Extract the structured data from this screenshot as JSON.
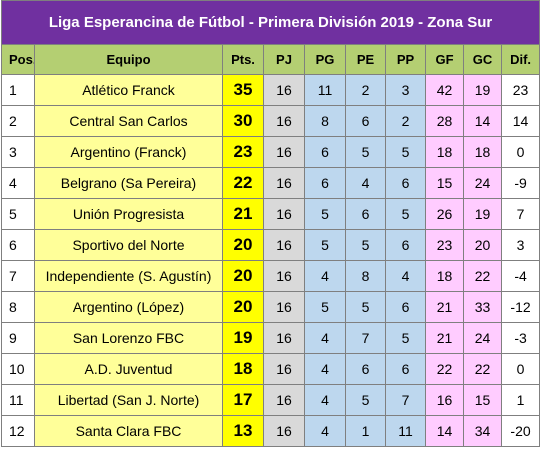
{
  "title": "Liga Esperancina de Fútbol - Primera División 2019 - Zona Sur",
  "headers": {
    "pos": "Pos.",
    "team": "Equipo",
    "pts": "Pts.",
    "pj": "PJ",
    "pg": "PG",
    "pe": "PE",
    "pp": "PP",
    "gf": "GF",
    "gc": "GC",
    "dif": "Dif."
  },
  "rows": [
    {
      "pos": "1",
      "team": "Atlético Franck",
      "pts": "35",
      "pj": "16",
      "pg": "11",
      "pe": "2",
      "pp": "3",
      "gf": "42",
      "gc": "19",
      "dif": "23"
    },
    {
      "pos": "2",
      "team": "Central San Carlos",
      "pts": "30",
      "pj": "16",
      "pg": "8",
      "pe": "6",
      "pp": "2",
      "gf": "28",
      "gc": "14",
      "dif": "14"
    },
    {
      "pos": "3",
      "team": "Argentino (Franck)",
      "pts": "23",
      "pj": "16",
      "pg": "6",
      "pe": "5",
      "pp": "5",
      "gf": "18",
      "gc": "18",
      "dif": "0"
    },
    {
      "pos": "4",
      "team": "Belgrano (Sa Pereira)",
      "pts": "22",
      "pj": "16",
      "pg": "6",
      "pe": "4",
      "pp": "6",
      "gf": "15",
      "gc": "24",
      "dif": "-9"
    },
    {
      "pos": "5",
      "team": "Unión Progresista",
      "pts": "21",
      "pj": "16",
      "pg": "5",
      "pe": "6",
      "pp": "5",
      "gf": "26",
      "gc": "19",
      "dif": "7"
    },
    {
      "pos": "6",
      "team": "Sportivo del Norte",
      "pts": "20",
      "pj": "16",
      "pg": "5",
      "pe": "5",
      "pp": "6",
      "gf": "23",
      "gc": "20",
      "dif": "3"
    },
    {
      "pos": "7",
      "team": "Independiente (S. Agustín)",
      "pts": "20",
      "pj": "16",
      "pg": "4",
      "pe": "8",
      "pp": "4",
      "gf": "18",
      "gc": "22",
      "dif": "-4"
    },
    {
      "pos": "8",
      "team": "Argentino (López)",
      "pts": "20",
      "pj": "16",
      "pg": "5",
      "pe": "5",
      "pp": "6",
      "gf": "21",
      "gc": "33",
      "dif": "-12"
    },
    {
      "pos": "9",
      "team": "San Lorenzo FBC",
      "pts": "19",
      "pj": "16",
      "pg": "4",
      "pe": "7",
      "pp": "5",
      "gf": "21",
      "gc": "24",
      "dif": "-3"
    },
    {
      "pos": "10",
      "team": "A.D. Juventud",
      "pts": "18",
      "pj": "16",
      "pg": "4",
      "pe": "6",
      "pp": "6",
      "gf": "22",
      "gc": "22",
      "dif": "0"
    },
    {
      "pos": "11",
      "team": "Libertad (San J. Norte)",
      "pts": "17",
      "pj": "16",
      "pg": "4",
      "pe": "5",
      "pp": "7",
      "gf": "16",
      "gc": "15",
      "dif": "1"
    },
    {
      "pos": "12",
      "team": "Santa Clara FBC",
      "pts": "13",
      "pj": "16",
      "pg": "4",
      "pe": "1",
      "pp": "11",
      "gf": "14",
      "gc": "34",
      "dif": "-20"
    }
  ],
  "colors": {
    "title_bg": "#7030a0",
    "header_bg": "#b4cf72",
    "team_bg": "#ffff99",
    "pts_bg": "#ffff00",
    "pj_bg": "#d9d9d9",
    "results_bg": "#bdd7ee",
    "goals_bg": "#ffccff"
  }
}
